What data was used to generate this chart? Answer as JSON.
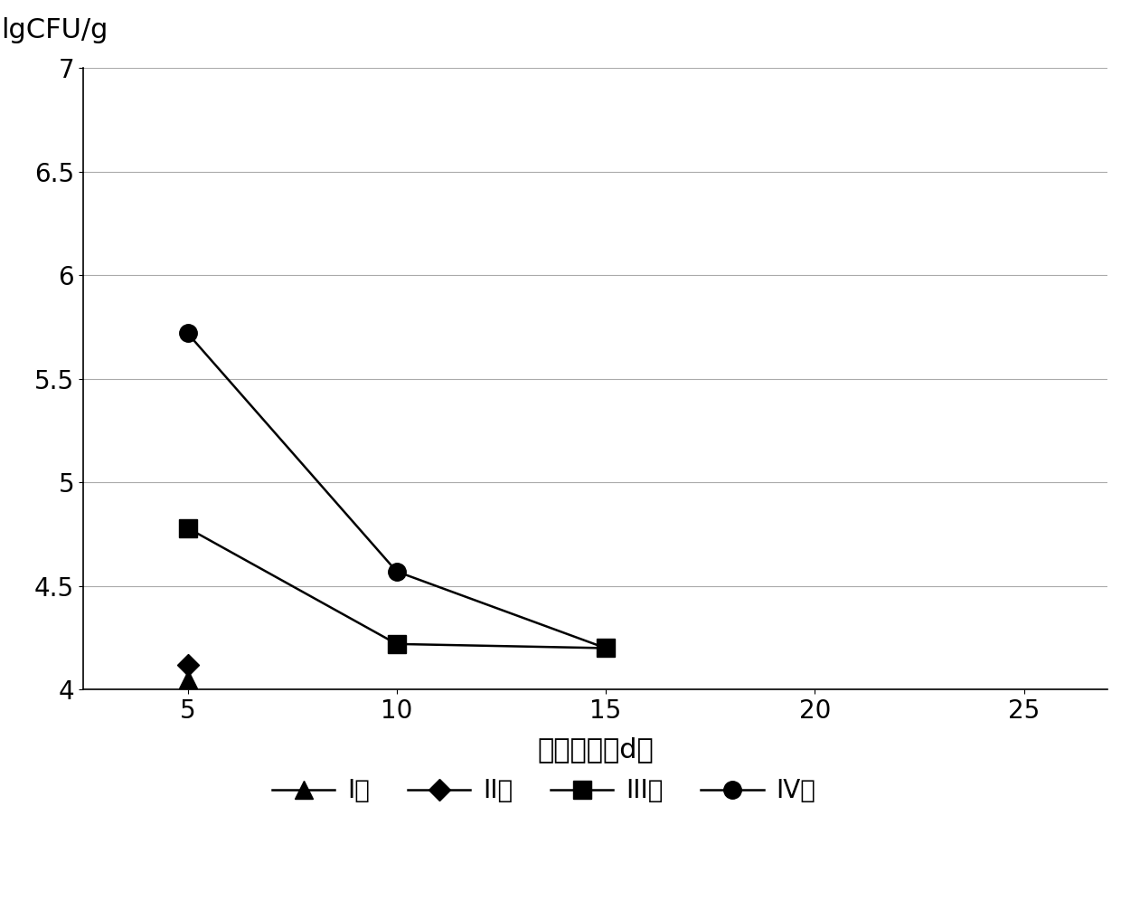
{
  "series": [
    {
      "label": "I组",
      "x": [
        5
      ],
      "y": [
        4.05
      ],
      "marker": "^",
      "color": "#000000",
      "linestyle": "-",
      "markersize": 14
    },
    {
      "label": "II组",
      "x": [
        5
      ],
      "y": [
        4.12
      ],
      "marker": "D",
      "color": "#000000",
      "linestyle": "-",
      "markersize": 12
    },
    {
      "label": "III组",
      "x": [
        5,
        10,
        15
      ],
      "y": [
        4.78,
        4.22,
        4.2
      ],
      "marker": "s",
      "color": "#000000",
      "linestyle": "-",
      "markersize": 14
    },
    {
      "label": "IV组",
      "x": [
        5,
        10,
        15
      ],
      "y": [
        5.72,
        4.57,
        4.2
      ],
      "marker": "o",
      "color": "#000000",
      "linestyle": "-",
      "markersize": 14
    }
  ],
  "xlim": [
    2.5,
    27
  ],
  "ylim": [
    4.0,
    7.0
  ],
  "xticks": [
    5,
    10,
    15,
    20,
    25
  ],
  "yticks": [
    4.0,
    4.5,
    5.0,
    5.5,
    6.0,
    6.5,
    7.0
  ],
  "xlabel": "滖留天数（d）",
  "ylabel": "lgCFU/g",
  "background_color": "#ffffff",
  "grid_color": "#aaaaaa",
  "line_width": 1.8,
  "legend_fontsize": 20,
  "axis_fontsize": 22,
  "tick_fontsize": 20
}
